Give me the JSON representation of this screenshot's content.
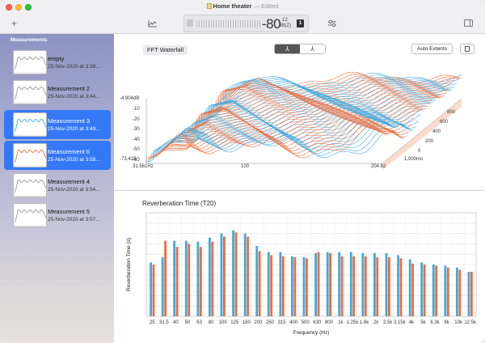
{
  "window": {
    "doc_name": "Home theater",
    "sep": " — ",
    "status": "Edited"
  },
  "toolbar": {
    "add_label": "+",
    "level_value": "-80",
    "level_sup": "12",
    "level_unit": "dB(Z)",
    "badge": "1"
  },
  "sidebar": {
    "header": "Measurements",
    "items": [
      {
        "name": "empty",
        "date": "25-Nov-2020 at 3:38...",
        "selected": false,
        "thumb_colors": [
          "#9a9a9a"
        ]
      },
      {
        "name": "Measurement 2",
        "date": "25-Nov-2020 at 3:44...",
        "selected": false,
        "thumb_colors": [
          "#9a9a9a"
        ]
      },
      {
        "name": "Measurement 3",
        "date": "25-Nov-2020 at 3:49...",
        "selected": true,
        "thumb_colors": [
          "#46aee0"
        ]
      },
      {
        "name": "Measurement 6",
        "date": "25-Nov-2020 at 3:58...",
        "selected": true,
        "thumb_colors": [
          "#ff7043"
        ]
      },
      {
        "name": "Measurement 4",
        "date": "25-Nov-2020 at 3:54...",
        "selected": false,
        "thumb_colors": [
          "#9a9a9a"
        ]
      },
      {
        "name": "Measurement 5",
        "date": "25-Nov-2020 at 3:57...",
        "selected": false,
        "thumb_colors": [
          "#9a9a9a"
        ]
      }
    ]
  },
  "fft": {
    "title": "FFT Waterfall",
    "seg_active": "⅄",
    "seg_inactive": "⅄",
    "auto_extents": "Auto Extents",
    "y_top": "-4.904dB",
    "y_ticks": [
      "-10",
      "-20",
      "-30",
      "-40",
      "-50",
      "-60"
    ],
    "y_bottom": "-73.415",
    "x_left": "31.561Hz",
    "x_mid": "100",
    "x_right": "204.62",
    "depth_ticks": [
      "0",
      "200",
      "400",
      "600",
      "800"
    ],
    "depth_end": "1,000ms",
    "colors": {
      "blue": "#3fa9de",
      "orange": "#f26b3a"
    }
  },
  "chart_data": {
    "type": "bar",
    "title": "Reverberation Time (T20)",
    "xlabel": "Frequency (Hz)",
    "ylabel": "Reverberation Time (s)",
    "categories": [
      "25",
      "31.5",
      "40",
      "50",
      "63",
      "80",
      "100",
      "125",
      "160",
      "200",
      "250",
      "315",
      "400",
      "500",
      "630",
      "800",
      "1k",
      "1.25k",
      "1.6k",
      "2k",
      "2.5k",
      "3.15k",
      "4k",
      "5k",
      "6.3k",
      "8k",
      "10k",
      "12.5k"
    ],
    "series": [
      {
        "color": "#3fa9de",
        "values": [
          0.52,
          0.57,
          0.73,
          0.73,
          0.72,
          0.76,
          0.8,
          0.83,
          0.8,
          0.68,
          0.62,
          0.62,
          0.58,
          0.57,
          0.61,
          0.62,
          0.62,
          0.62,
          0.61,
          0.61,
          0.61,
          0.59,
          0.55,
          0.52,
          0.5,
          0.49,
          0.47,
          0.43
        ]
      },
      {
        "color": "#f26b3a",
        "values": [
          0.5,
          0.73,
          0.67,
          0.7,
          0.67,
          0.72,
          0.77,
          0.81,
          0.77,
          0.63,
          0.59,
          0.58,
          0.57,
          0.56,
          0.62,
          0.61,
          0.58,
          0.58,
          0.58,
          0.57,
          0.57,
          0.56,
          0.51,
          0.5,
          0.49,
          0.47,
          0.45,
          0.43
        ]
      }
    ],
    "ylim": [
      0,
      1.0
    ],
    "grid": true
  }
}
